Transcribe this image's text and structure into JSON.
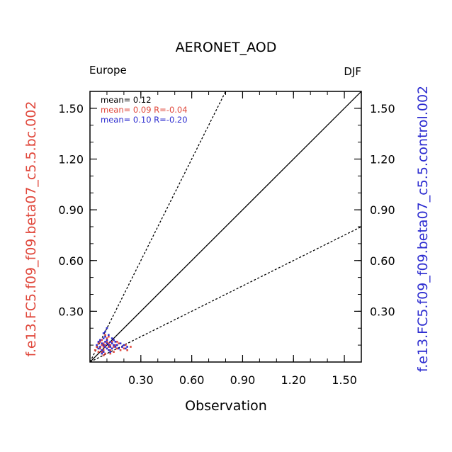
{
  "chart_data": {
    "type": "scatter",
    "title": "AERONET_AOD",
    "region": "Europe",
    "season": "DJF",
    "xlabel": "Observation",
    "ylabel_left": "f.e13.FC5.f09_f09.beta07_c5.5.bc.002",
    "ylabel_right": "f.e13.FC5.f09_f09.beta07_c5.5.control.002",
    "xlim": [
      0.0,
      1.6
    ],
    "ylim": [
      0.0,
      1.6
    ],
    "ticks": [
      0.3,
      0.6,
      0.9,
      1.2,
      1.5
    ],
    "tick_labels": [
      "0.30",
      "0.60",
      "0.90",
      "1.20",
      "1.50"
    ],
    "minor_tick_step": 0.1,
    "reference_lines": [
      {
        "name": "1:1",
        "slope": 1.0,
        "style": "solid"
      },
      {
        "name": "2:1",
        "slope": 2.0,
        "style": "dashed"
      },
      {
        "name": "1:2",
        "slope": 0.5,
        "style": "dashed"
      }
    ],
    "stats": {
      "obs": {
        "text": "mean= 0.12",
        "color": "#000000"
      },
      "bc": {
        "text": "mean= 0.09  R=-0.04",
        "color": "#e0483c"
      },
      "control": {
        "text": "mean= 0.10  R=-0.20",
        "color": "#2d2dd0"
      }
    },
    "series": [
      {
        "name": "f.e13.FC5.f09_f09.beta07_c5.5.bc.002",
        "color": "#e0483c",
        "x": [
          0.03,
          0.04,
          0.05,
          0.05,
          0.06,
          0.06,
          0.07,
          0.07,
          0.07,
          0.08,
          0.08,
          0.08,
          0.09,
          0.09,
          0.1,
          0.1,
          0.11,
          0.11,
          0.12,
          0.12,
          0.13,
          0.13,
          0.14,
          0.14,
          0.15,
          0.16,
          0.17,
          0.18,
          0.19,
          0.2,
          0.21,
          0.22,
          0.24,
          0.1,
          0.12,
          0.09,
          0.14,
          0.08,
          0.16,
          0.11
        ],
        "y": [
          0.07,
          0.09,
          0.06,
          0.11,
          0.08,
          0.12,
          0.1,
          0.06,
          0.13,
          0.09,
          0.11,
          0.07,
          0.1,
          0.05,
          0.08,
          0.12,
          0.09,
          0.11,
          0.07,
          0.1,
          0.08,
          0.12,
          0.09,
          0.06,
          0.1,
          0.08,
          0.11,
          0.07,
          0.09,
          0.08,
          0.1,
          0.07,
          0.09,
          0.14,
          0.05,
          0.16,
          0.13,
          0.04,
          0.12,
          0.15
        ]
      },
      {
        "name": "f.e13.FC5.f09_f09.beta07_c5.5.control.002",
        "color": "#2d2dd0",
        "x": [
          0.04,
          0.05,
          0.05,
          0.06,
          0.06,
          0.07,
          0.07,
          0.08,
          0.08,
          0.08,
          0.09,
          0.09,
          0.09,
          0.1,
          0.1,
          0.1,
          0.11,
          0.11,
          0.12,
          0.12,
          0.13,
          0.13,
          0.14,
          0.14,
          0.15,
          0.15,
          0.16,
          0.17,
          0.18,
          0.19,
          0.2,
          0.21,
          0.22,
          0.09,
          0.11,
          0.13,
          0.07,
          0.1,
          0.12,
          0.08
        ],
        "y": [
          0.1,
          0.08,
          0.12,
          0.09,
          0.13,
          0.11,
          0.07,
          0.1,
          0.14,
          0.06,
          0.09,
          0.12,
          0.15,
          0.08,
          0.11,
          0.13,
          0.1,
          0.07,
          0.12,
          0.09,
          0.11,
          0.08,
          0.1,
          0.13,
          0.09,
          0.12,
          0.1,
          0.08,
          0.11,
          0.09,
          0.1,
          0.08,
          0.09,
          0.18,
          0.16,
          0.14,
          0.05,
          0.2,
          0.06,
          0.17
        ]
      }
    ]
  }
}
